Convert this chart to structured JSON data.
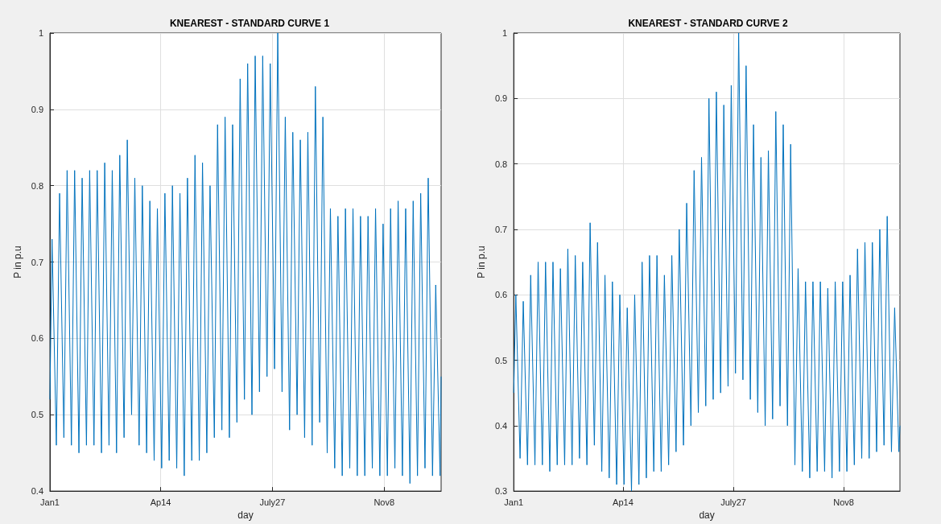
{
  "chart_data": [
    {
      "type": "line",
      "title": "KNEAREST - STANDARD CURVE 1",
      "xlabel": "day",
      "ylabel": "P in p.u",
      "x": [
        "--01-01",
        "--01-03",
        "--01-07",
        "--01-10",
        "--01-14",
        "--01-17",
        "--01-21",
        "--01-24",
        "--01-28",
        "--01-31",
        "--02-04",
        "--02-07",
        "--02-11",
        "--02-14",
        "--02-18",
        "--02-21",
        "--02-25",
        "--02-28",
        "--03-04",
        "--03-07",
        "--03-11",
        "--03-14",
        "--03-18",
        "--03-21",
        "--03-25",
        "--03-28",
        "--04-01",
        "--04-04",
        "--04-08",
        "--04-11",
        "--04-15",
        "--04-18",
        "--04-22",
        "--04-25",
        "--04-29",
        "--05-02",
        "--05-06",
        "--05-09",
        "--05-13",
        "--05-16",
        "--05-20",
        "--05-23",
        "--05-27",
        "--05-30",
        "--06-03",
        "--06-06",
        "--06-10",
        "--06-13",
        "--06-17",
        "--06-20",
        "--06-24",
        "--06-27",
        "--07-01",
        "--07-04",
        "--07-08",
        "--07-11",
        "--07-15",
        "--07-18",
        "--07-22",
        "--07-25",
        "--07-29",
        "--08-01",
        "--08-05",
        "--08-08",
        "--08-12",
        "--08-15",
        "--08-19",
        "--08-22",
        "--08-26",
        "--08-29",
        "--09-02",
        "--09-05",
        "--09-09",
        "--09-12",
        "--09-16",
        "--09-19",
        "--09-23",
        "--09-26",
        "--09-30",
        "--10-03",
        "--10-07",
        "--10-10",
        "--10-14",
        "--10-17",
        "--10-21",
        "--10-24",
        "--10-28",
        "--10-31",
        "--11-04",
        "--11-07",
        "--11-11",
        "--11-14",
        "--11-18",
        "--11-21",
        "--11-25",
        "--11-28",
        "--12-02",
        "--12-05",
        "--12-09",
        "--12-12",
        "--12-16",
        "--12-19",
        "--12-23",
        "--12-26",
        "--12-30",
        "--12-31"
      ],
      "series": [
        {
          "color": "#0072bd",
          "values": [
            0.52,
            0.73,
            0.46,
            0.79,
            0.47,
            0.82,
            0.46,
            0.82,
            0.45,
            0.81,
            0.46,
            0.82,
            0.46,
            0.82,
            0.45,
            0.83,
            0.46,
            0.82,
            0.45,
            0.84,
            0.47,
            0.86,
            0.5,
            0.81,
            0.46,
            0.8,
            0.45,
            0.78,
            0.44,
            0.77,
            0.43,
            0.79,
            0.44,
            0.8,
            0.43,
            0.79,
            0.42,
            0.81,
            0.44,
            0.84,
            0.44,
            0.83,
            0.45,
            0.8,
            0.47,
            0.88,
            0.48,
            0.89,
            0.47,
            0.88,
            0.49,
            0.94,
            0.52,
            0.96,
            0.5,
            0.97,
            0.53,
            0.97,
            0.55,
            0.96,
            0.56,
            1.0,
            0.53,
            0.89,
            0.48,
            0.87,
            0.5,
            0.86,
            0.47,
            0.87,
            0.46,
            0.93,
            0.49,
            0.89,
            0.45,
            0.77,
            0.43,
            0.76,
            0.42,
            0.77,
            0.43,
            0.77,
            0.42,
            0.76,
            0.42,
            0.76,
            0.43,
            0.77,
            0.42,
            0.75,
            0.42,
            0.77,
            0.43,
            0.78,
            0.42,
            0.77,
            0.41,
            0.78,
            0.42,
            0.79,
            0.43,
            0.81,
            0.42,
            0.67,
            0.42,
            0.55
          ]
        }
      ],
      "xlim": [
        "--01-01",
        "--12-31"
      ],
      "xticks": [
        {
          "value": "--01-01",
          "label": "Jan1"
        },
        {
          "value": "--04-14",
          "label": "Ap14"
        },
        {
          "value": "--07-27",
          "label": "July27"
        },
        {
          "value": "--11-08",
          "label": "Nov8"
        }
      ],
      "ylim": [
        0.4,
        1
      ],
      "yticks": [
        0.4,
        0.5,
        0.6,
        0.7,
        0.8,
        0.9,
        1
      ],
      "grid": true
    },
    {
      "type": "line",
      "title": "KNEAREST - STANDARD CURVE 2",
      "xlabel": "day",
      "ylabel": "P in p.u",
      "x": [
        "--01-01",
        "--01-03",
        "--01-07",
        "--01-10",
        "--01-14",
        "--01-17",
        "--01-21",
        "--01-24",
        "--01-28",
        "--01-31",
        "--02-04",
        "--02-07",
        "--02-11",
        "--02-14",
        "--02-18",
        "--02-21",
        "--02-25",
        "--02-28",
        "--03-04",
        "--03-07",
        "--03-11",
        "--03-14",
        "--03-18",
        "--03-21",
        "--03-25",
        "--03-28",
        "--04-01",
        "--04-04",
        "--04-08",
        "--04-11",
        "--04-15",
        "--04-18",
        "--04-22",
        "--04-25",
        "--04-29",
        "--05-02",
        "--05-06",
        "--05-09",
        "--05-13",
        "--05-16",
        "--05-20",
        "--05-23",
        "--05-27",
        "--05-30",
        "--06-03",
        "--06-06",
        "--06-10",
        "--06-13",
        "--06-17",
        "--06-20",
        "--06-24",
        "--06-27",
        "--07-01",
        "--07-04",
        "--07-08",
        "--07-11",
        "--07-15",
        "--07-18",
        "--07-22",
        "--07-25",
        "--07-29",
        "--08-01",
        "--08-05",
        "--08-08",
        "--08-12",
        "--08-15",
        "--08-19",
        "--08-22",
        "--08-26",
        "--08-29",
        "--09-02",
        "--09-05",
        "--09-09",
        "--09-12",
        "--09-16",
        "--09-19",
        "--09-23",
        "--09-26",
        "--09-30",
        "--10-03",
        "--10-07",
        "--10-10",
        "--10-14",
        "--10-17",
        "--10-21",
        "--10-24",
        "--10-28",
        "--10-31",
        "--11-04",
        "--11-07",
        "--11-11",
        "--11-14",
        "--11-18",
        "--11-21",
        "--11-25",
        "--11-28",
        "--12-02",
        "--12-05",
        "--12-09",
        "--12-12",
        "--12-16",
        "--12-19",
        "--12-23",
        "--12-26",
        "--12-30",
        "--12-31"
      ],
      "series": [
        {
          "color": "#0072bd",
          "values": [
            0.45,
            0.6,
            0.35,
            0.59,
            0.34,
            0.63,
            0.34,
            0.65,
            0.34,
            0.65,
            0.33,
            0.65,
            0.34,
            0.64,
            0.34,
            0.67,
            0.34,
            0.66,
            0.35,
            0.65,
            0.34,
            0.71,
            0.37,
            0.68,
            0.33,
            0.63,
            0.32,
            0.62,
            0.31,
            0.6,
            0.31,
            0.58,
            0.3,
            0.6,
            0.31,
            0.65,
            0.32,
            0.66,
            0.33,
            0.66,
            0.33,
            0.63,
            0.34,
            0.66,
            0.36,
            0.7,
            0.37,
            0.74,
            0.4,
            0.79,
            0.42,
            0.81,
            0.43,
            0.9,
            0.44,
            0.91,
            0.45,
            0.89,
            0.46,
            0.92,
            0.48,
            1.0,
            0.47,
            0.95,
            0.44,
            0.86,
            0.42,
            0.81,
            0.4,
            0.82,
            0.41,
            0.88,
            0.43,
            0.86,
            0.4,
            0.83,
            0.34,
            0.64,
            0.33,
            0.62,
            0.32,
            0.62,
            0.33,
            0.62,
            0.33,
            0.61,
            0.32,
            0.62,
            0.33,
            0.62,
            0.33,
            0.63,
            0.34,
            0.67,
            0.35,
            0.68,
            0.35,
            0.68,
            0.36,
            0.7,
            0.37,
            0.72,
            0.36,
            0.58,
            0.36,
            0.4
          ]
        }
      ],
      "xlim": [
        "--01-01",
        "--12-31"
      ],
      "xticks": [
        {
          "value": "--01-01",
          "label": "Jan1"
        },
        {
          "value": "--04-14",
          "label": "Ap14"
        },
        {
          "value": "--07-27",
          "label": "July27"
        },
        {
          "value": "--11-08",
          "label": "Nov8"
        }
      ],
      "ylim": [
        0.3,
        1
      ],
      "yticks": [
        0.3,
        0.4,
        0.5,
        0.6,
        0.7,
        0.8,
        0.9,
        1
      ],
      "grid": true
    }
  ]
}
